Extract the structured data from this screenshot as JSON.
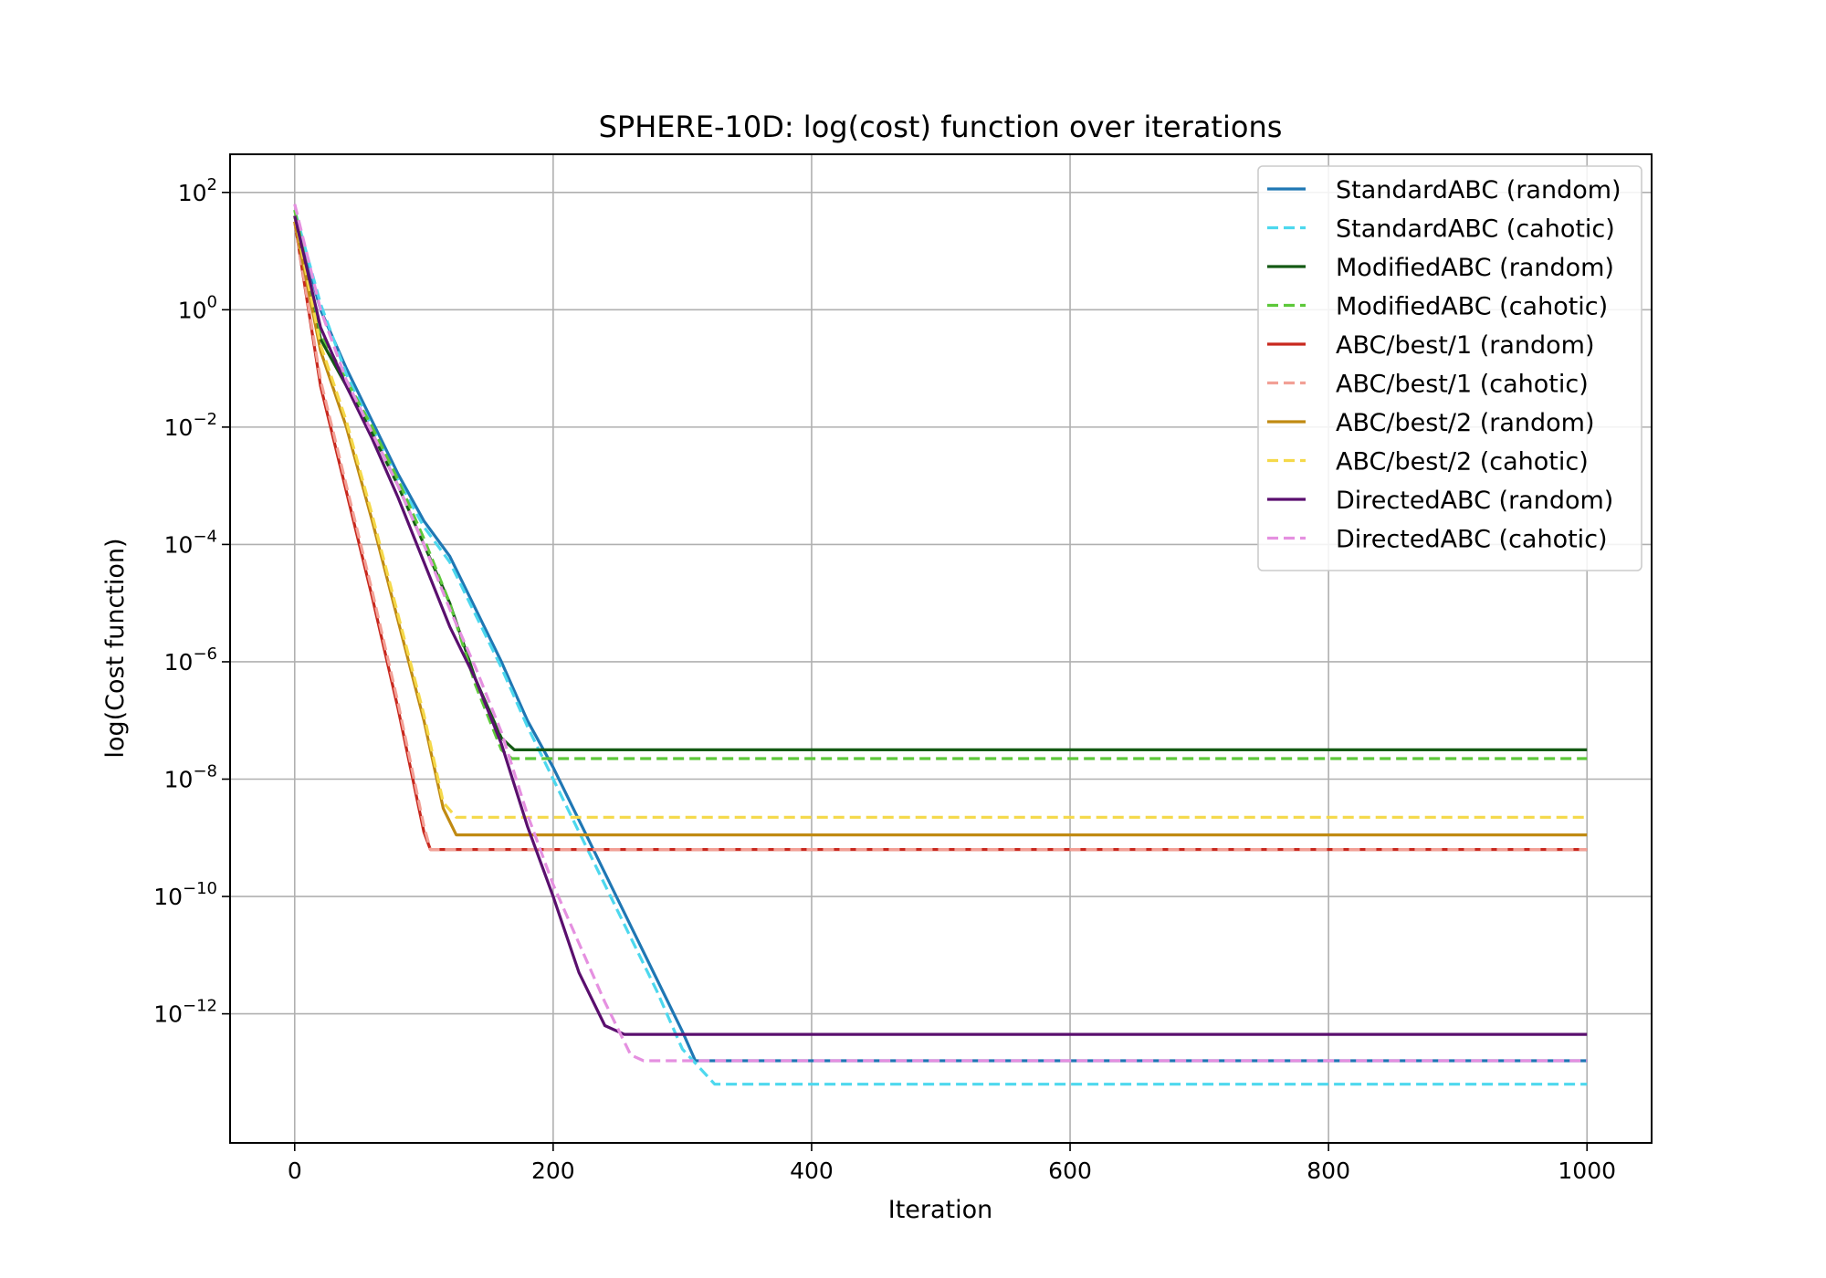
{
  "chart_data": {
    "type": "line",
    "title": "SPHERE-10D: log(cost) function over iterations",
    "xlabel": "Iteration",
    "ylabel": "log(Cost function)",
    "xlim": [
      -50,
      1050
    ],
    "ylim_log10": [
      -14.2,
      2.65
    ],
    "y_scale": "log",
    "x_ticks": [
      0,
      200,
      400,
      600,
      800,
      1000
    ],
    "x_tick_labels": [
      "0",
      "200",
      "400",
      "600",
      "800",
      "1000"
    ],
    "y_ticks_log10": [
      2,
      0,
      -2,
      -4,
      -6,
      -8,
      -10,
      -12
    ],
    "y_tick_mantissas": [
      "10",
      "10",
      "10",
      "10",
      "10",
      "10",
      "10",
      "10"
    ],
    "y_tick_exponents": [
      "2",
      "0",
      "−2",
      "−4",
      "−6",
      "−8",
      "−10",
      "−12"
    ],
    "grid": true,
    "legend_position": "top-right",
    "series": [
      {
        "name": "StandardABC (random)",
        "color": "#1f77b4",
        "dash": "solid",
        "x": [
          0,
          20,
          40,
          60,
          80,
          100,
          120,
          140,
          160,
          180,
          200,
          220,
          240,
          260,
          280,
          300,
          310,
          1000
        ],
        "log10_y": [
          1.6,
          0.0,
          -1.0,
          -1.9,
          -2.8,
          -3.6,
          -4.2,
          -5.1,
          -6.0,
          -7.0,
          -7.8,
          -8.7,
          -9.6,
          -10.5,
          -11.4,
          -12.3,
          -12.8,
          -12.8
        ]
      },
      {
        "name": "StandardABC (cahotic)",
        "color": "#4dd8ee",
        "dash": "dashed",
        "x": [
          0,
          20,
          40,
          60,
          80,
          100,
          120,
          140,
          160,
          180,
          200,
          220,
          240,
          260,
          280,
          300,
          325,
          1000
        ],
        "log10_y": [
          1.7,
          0.1,
          -1.1,
          -2.0,
          -2.9,
          -3.7,
          -4.3,
          -5.2,
          -6.1,
          -7.1,
          -8.0,
          -8.9,
          -9.8,
          -10.7,
          -11.6,
          -12.6,
          -13.2,
          -13.2
        ]
      },
      {
        "name": "ModifiedABC (random)",
        "color": "#145a14",
        "dash": "solid",
        "x": [
          0,
          20,
          40,
          60,
          80,
          100,
          120,
          140,
          160,
          170,
          1000
        ],
        "log10_y": [
          1.6,
          -0.5,
          -1.3,
          -2.1,
          -3.0,
          -4.0,
          -5.0,
          -6.3,
          -7.3,
          -7.5,
          -7.5
        ]
      },
      {
        "name": "ModifiedABC (cahotic)",
        "color": "#5dc83a",
        "dash": "dashed",
        "x": [
          0,
          20,
          40,
          60,
          80,
          100,
          120,
          140,
          160,
          168,
          1000
        ],
        "log10_y": [
          1.7,
          -0.4,
          -1.2,
          -2.0,
          -2.9,
          -3.9,
          -5.0,
          -6.4,
          -7.5,
          -7.65,
          -7.65
        ]
      },
      {
        "name": "ABC/best/1 (random)",
        "color": "#c8281e",
        "dash": "solid",
        "x": [
          0,
          20,
          40,
          60,
          80,
          100,
          105,
          1000
        ],
        "log10_y": [
          1.5,
          -1.3,
          -3.1,
          -4.9,
          -6.8,
          -8.9,
          -9.2,
          -9.2
        ]
      },
      {
        "name": "ABC/best/1 (cahotic)",
        "color": "#f2a096",
        "dash": "dashed",
        "x": [
          0,
          20,
          40,
          60,
          80,
          100,
          105,
          1000
        ],
        "log10_y": [
          1.5,
          -1.2,
          -3.0,
          -4.8,
          -6.7,
          -8.8,
          -9.2,
          -9.2
        ]
      },
      {
        "name": "ABC/best/2 (random)",
        "color": "#c08a12",
        "dash": "solid",
        "x": [
          0,
          20,
          40,
          60,
          80,
          100,
          115,
          125,
          1000
        ],
        "log10_y": [
          1.5,
          -0.7,
          -2.0,
          -3.6,
          -5.3,
          -7.0,
          -8.5,
          -8.95,
          -8.95
        ]
      },
      {
        "name": "ABC/best/2 (cahotic)",
        "color": "#f5d94a",
        "dash": "dashed",
        "x": [
          0,
          20,
          40,
          60,
          80,
          100,
          115,
          125,
          1000
        ],
        "log10_y": [
          1.6,
          -0.6,
          -1.9,
          -3.5,
          -5.2,
          -6.9,
          -8.4,
          -8.65,
          -8.65
        ]
      },
      {
        "name": "DirectedABC (random)",
        "color": "#5a0f6e",
        "dash": "solid",
        "x": [
          0,
          20,
          40,
          60,
          80,
          100,
          120,
          140,
          160,
          180,
          200,
          220,
          240,
          255,
          1000
        ],
        "log10_y": [
          1.6,
          -0.3,
          -1.3,
          -2.2,
          -3.2,
          -4.3,
          -5.4,
          -6.3,
          -7.4,
          -8.8,
          -10.0,
          -11.3,
          -12.2,
          -12.35,
          -12.35
        ]
      },
      {
        "name": "DirectedABC (cahotic)",
        "color": "#e590e0",
        "dash": "dashed",
        "x": [
          0,
          20,
          40,
          60,
          80,
          100,
          120,
          140,
          160,
          180,
          200,
          220,
          240,
          260,
          270,
          1000
        ],
        "log10_y": [
          1.8,
          0.0,
          -1.2,
          -2.1,
          -3.0,
          -4.0,
          -5.1,
          -6.1,
          -7.2,
          -8.6,
          -9.8,
          -10.8,
          -11.8,
          -12.7,
          -12.8,
          -12.8
        ]
      }
    ]
  }
}
